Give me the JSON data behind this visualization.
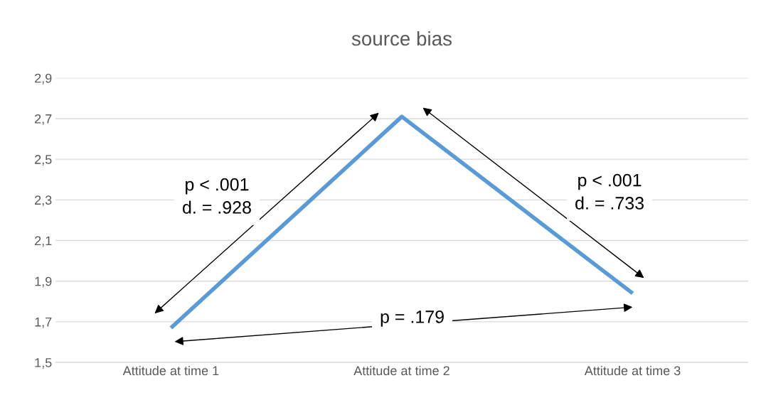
{
  "chart_data": {
    "type": "line",
    "title": "source bias",
    "categories": [
      "Attitude at time 1",
      "Attitude at time 2",
      "Attitude at time 3"
    ],
    "series": [
      {
        "color": "#5b9bd5",
        "values": [
          1.67,
          2.71,
          1.84
        ]
      }
    ],
    "ylim": [
      1.5,
      2.9
    ],
    "yticks": [
      {
        "value": 1.5,
        "label": "1,5"
      },
      {
        "value": 1.7,
        "label": "1,7"
      },
      {
        "value": 1.9,
        "label": "1,9"
      },
      {
        "value": 2.1,
        "label": "2,1"
      },
      {
        "value": 2.3,
        "label": "2,3"
      },
      {
        "value": 2.5,
        "label": "2,5"
      },
      {
        "value": 2.7,
        "label": "2,7"
      },
      {
        "value": 2.9,
        "label": "2,9"
      }
    ],
    "grid": "y",
    "legend": false,
    "marker": "none",
    "line_style": "solid",
    "annotations": [
      "p < .001\nd. = .928",
      "p < .001\nd. = .733",
      "p = .179"
    ]
  }
}
